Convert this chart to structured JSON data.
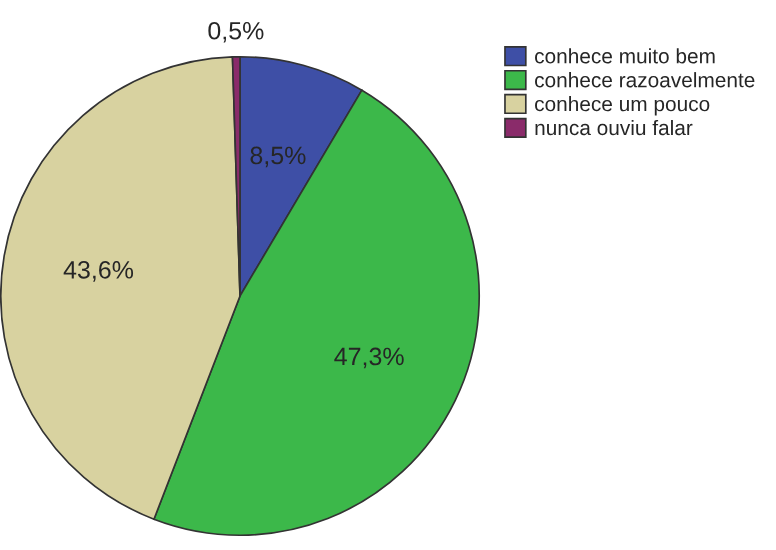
{
  "chart_data": {
    "type": "pie",
    "categories": [
      "conhece muito bem",
      "conhece razoavelmente",
      "conhece um pouco",
      "nunca ouviu falar"
    ],
    "values": [
      8.5,
      47.3,
      43.6,
      0.5
    ],
    "colors": [
      "#3e4fa6",
      "#3cb84a",
      "#d8d2a0",
      "#8a2b6a"
    ],
    "value_labels": [
      "8,5%",
      "47,3%",
      "43,6%",
      "0,5%"
    ],
    "legend": "top right"
  }
}
